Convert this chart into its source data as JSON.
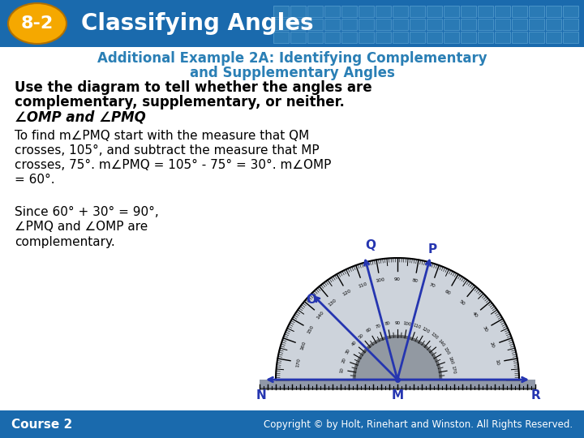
{
  "title_text": "Classifying Angles",
  "title_num": "8-2",
  "header_bg_color": "#1a6aad",
  "oval_color": "#f5a800",
  "subtitle_color": "#2a7fb5",
  "subtitle_line1": "Additional Example 2A: Identifying Complementary",
  "subtitle_line2": "and Supplementary Angles",
  "body_bold_line1": "Use the diagram to tell whether the angles are",
  "body_bold_line2": "complementary, supplementary, or neither.",
  "body_bold_line3": "∠OMP and ∠PMQ",
  "para1_line1": "To find m∠PMQ start with the measure that QM",
  "para1_line2": "crosses, 105°, and subtract the measure that MP",
  "para1_line3": "crosses, 75°. m∠PMQ = 105° - 75° = 30°. m∠OMP",
  "para1_line4": "= 60°.",
  "para2_line1": "Since 60° + 30° = 90°,",
  "para2_line2": "∠PMQ and ∠OMP are",
  "para2_line3": "complementary.",
  "footer_text": "Course 2",
  "footer_copyright": "Copyright © by Holt, Rinehart and Winston. All Rights Reserved.",
  "footer_bg_color": "#1a6aad",
  "white_bg": "#ffffff",
  "line_color": "#2535b0"
}
